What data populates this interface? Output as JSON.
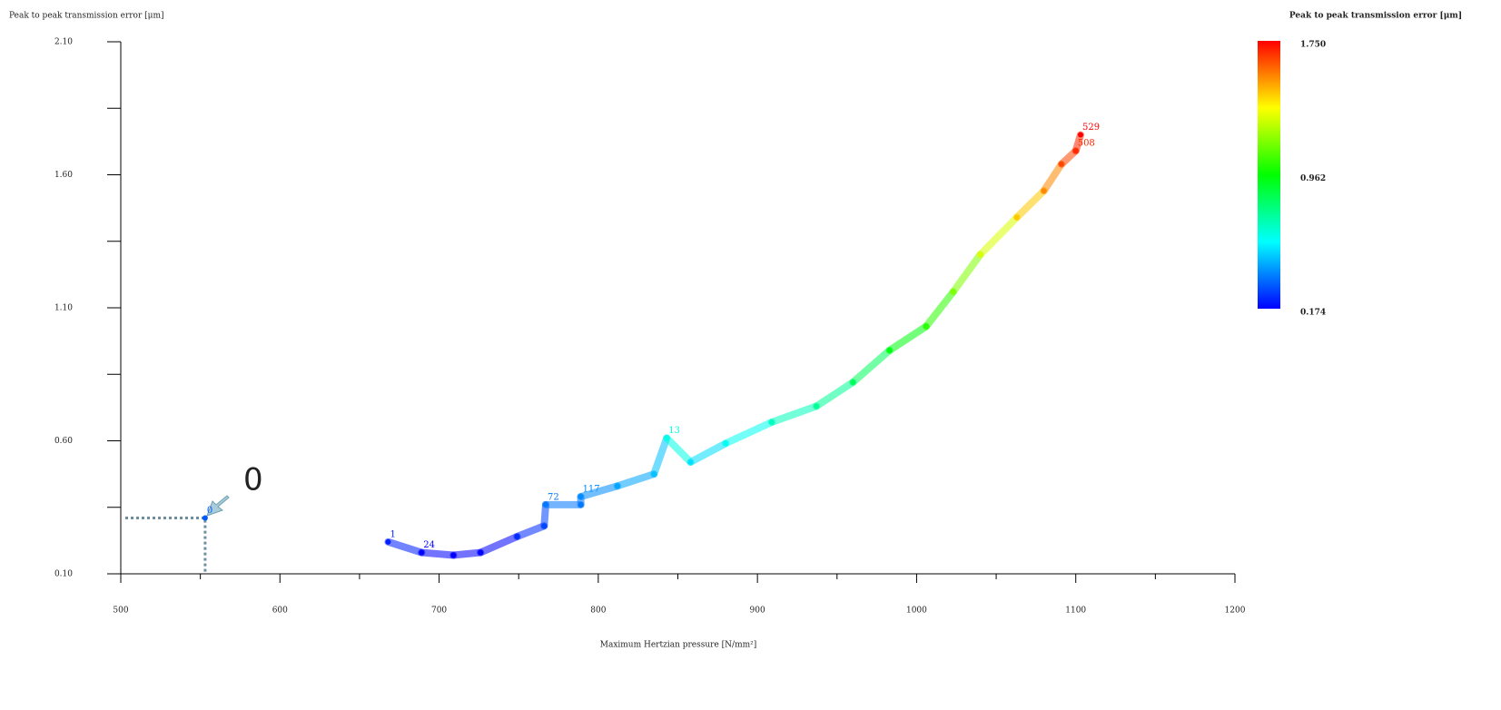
{
  "chart_data": {
    "type": "scatter",
    "y_label": "Peak to peak transmission error [μm]",
    "x_label": "Maximum Hertzian pressure [N/mm²]",
    "colorbar_title": "Peak to peak transmission error [μm]",
    "annotation": "0",
    "xlim": [
      500,
      1200
    ],
    "ylim": [
      0.1,
      2.1
    ],
    "xticks": [
      500,
      600,
      700,
      800,
      900,
      1000,
      1100,
      1200
    ],
    "xminor": [
      550,
      650,
      750,
      850,
      950,
      1050,
      1150
    ],
    "yticks": [
      {
        "value": 0.1,
        "label": "0.10"
      },
      {
        "value": 0.6,
        "label": "0.60"
      },
      {
        "value": 1.1,
        "label": "1.10"
      },
      {
        "value": 1.6,
        "label": "1.60"
      },
      {
        "value": 2.1,
        "label": "2.10"
      }
    ],
    "yminor": [
      0.35,
      0.85,
      1.35,
      1.85
    ],
    "colorbar_lim": [
      0.174,
      1.75
    ],
    "colorbar_ticks": [
      {
        "value": 1.75,
        "label": "1.750"
      },
      {
        "value": 0.962,
        "label": "0.962"
      },
      {
        "value": 0.174,
        "label": "0.174"
      }
    ],
    "colormap": [
      "#0000ff",
      "#00ffff",
      "#00ff00",
      "#ffff00",
      "#ff0000"
    ],
    "x": [
      553,
      668,
      689,
      709,
      726,
      749,
      766,
      767,
      789,
      789,
      812,
      835,
      843,
      858,
      880,
      909,
      937,
      960,
      983,
      1006,
      1023,
      1040,
      1063,
      1080,
      1091,
      1100,
      1103
    ],
    "values": [
      0.31,
      0.22,
      0.18,
      0.17,
      0.18,
      0.24,
      0.28,
      0.36,
      0.36,
      0.39,
      0.43,
      0.475,
      0.61,
      0.52,
      0.59,
      0.67,
      0.73,
      0.82,
      0.94,
      1.03,
      1.16,
      1.3,
      1.44,
      1.54,
      1.64,
      1.69,
      1.75
    ],
    "labels": [
      "0",
      "1",
      "24",
      null,
      null,
      null,
      null,
      "72",
      null,
      "117",
      null,
      null,
      "13",
      null,
      null,
      null,
      null,
      null,
      null,
      null,
      null,
      null,
      null,
      null,
      null,
      "508",
      "529"
    ]
  }
}
